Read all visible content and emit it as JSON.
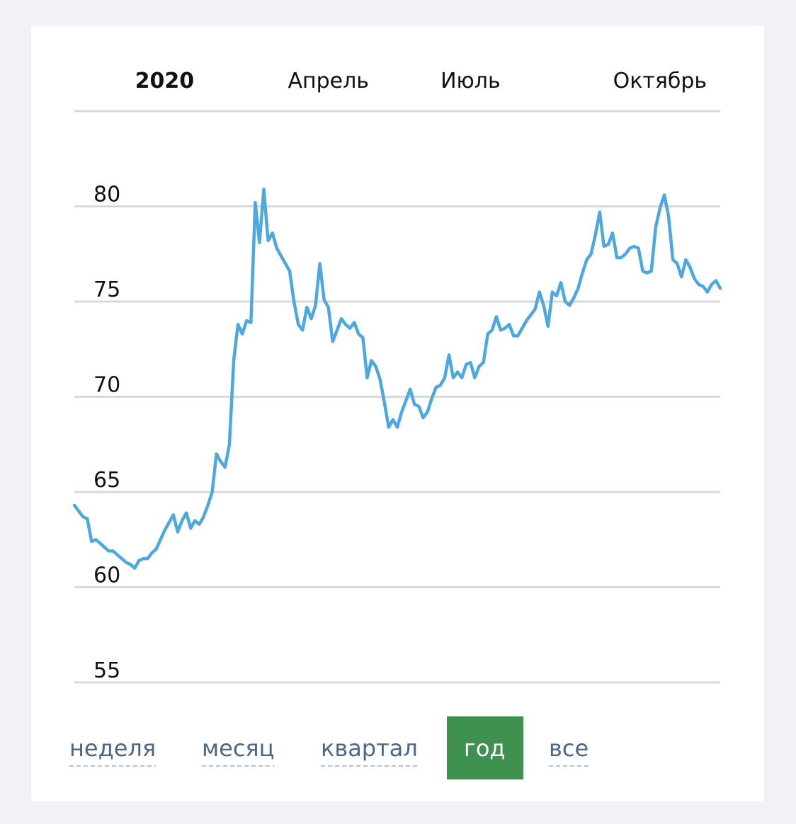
{
  "chart_data": {
    "type": "line",
    "color": "#4ea8e0",
    "values": [
      64.3,
      64.0,
      63.7,
      63.6,
      62.4,
      62.5,
      62.3,
      62.1,
      61.9,
      61.9,
      61.7,
      61.5,
      61.3,
      61.2,
      61.0,
      61.4,
      61.5,
      61.5,
      61.8,
      62.0,
      62.5,
      63.0,
      63.4,
      63.8,
      62.9,
      63.5,
      63.9,
      63.1,
      63.5,
      63.3,
      63.7,
      64.3,
      65.0,
      67.0,
      66.6,
      66.3,
      67.5,
      71.9,
      73.8,
      73.3,
      74.0,
      73.9,
      80.2,
      78.1,
      80.9,
      78.2,
      78.6,
      77.8,
      77.4,
      77.0,
      76.6,
      75.0,
      73.8,
      73.5,
      74.7,
      74.1,
      74.8,
      77.0,
      75.1,
      74.7,
      72.9,
      73.5,
      74.1,
      73.8,
      73.6,
      73.9,
      73.3,
      73.1,
      71.0,
      71.9,
      71.6,
      70.9,
      69.7,
      68.4,
      68.8,
      68.4,
      69.2,
      69.8,
      70.4,
      69.6,
      69.5,
      68.9,
      69.2,
      69.9,
      70.5,
      70.6,
      71.0,
      72.2,
      71.0,
      71.3,
      71.0,
      71.7,
      71.8,
      71.0,
      71.6,
      71.8,
      73.3,
      73.5,
      74.2,
      73.5,
      73.6,
      73.8,
      73.2,
      73.2,
      73.6,
      74.0,
      74.3,
      74.6,
      75.5,
      74.8,
      73.7,
      75.5,
      75.3,
      76.0,
      75.0,
      74.8,
      75.2,
      75.7,
      76.5,
      77.2,
      77.5,
      78.5,
      79.7,
      77.9,
      78.0,
      78.6,
      77.3,
      77.3,
      77.5,
      77.8,
      77.9,
      77.8,
      76.6,
      76.5,
      76.6,
      78.9,
      79.9,
      80.6,
      79.5,
      77.2,
      77.0,
      76.3,
      77.2,
      76.8,
      76.2,
      75.9,
      75.8,
      75.5,
      75.9,
      76.1,
      75.7
    ],
    "xlim": [
      0,
      150
    ],
    "xticks": [
      {
        "value": 17,
        "label": "2020"
      },
      {
        "value": 59,
        "label": "Апрель"
      },
      {
        "value": 92,
        "label": "Июль"
      },
      {
        "value": 136,
        "label": "Октябрь"
      }
    ],
    "ylim": [
      55,
      85
    ],
    "yticks": [
      55,
      60,
      65,
      70,
      75,
      80
    ],
    "grid": true
  },
  "period_buttons": [
    "неделя",
    "месяц",
    "квартал",
    "год",
    "все"
  ],
  "selected_period_index": 3
}
